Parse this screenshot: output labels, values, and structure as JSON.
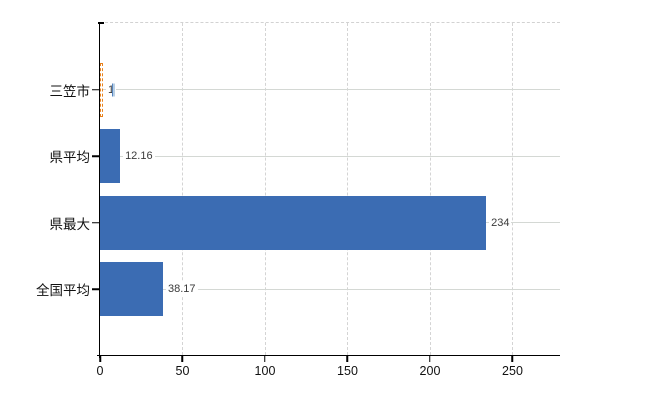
{
  "chart_data": {
    "type": "bar",
    "orientation": "horizontal",
    "title": "",
    "categories": [
      "三笠市",
      "県平均",
      "県最大",
      "全国平均"
    ],
    "values": [
      1,
      12.16,
      234,
      38.17
    ],
    "value_labels": [
      "1",
      "12.16",
      "234",
      "38.17"
    ],
    "x_ticks": [
      0,
      50,
      100,
      150,
      200,
      250
    ],
    "x_tick_labels": [
      "0",
      "50",
      "100",
      "150",
      "200",
      "250"
    ],
    "xlim": [
      0,
      278.8
    ],
    "grid": true,
    "legend": false,
    "bar_color": "#3b6cb3",
    "highlighted_index": 0,
    "highlight_outline_color": "#e8821e",
    "marker_color_left": "#5585c0",
    "marker_color_right": "#b9cfe4",
    "axis_color": "#000000",
    "v_gridline_color": "#d4d4d4",
    "h_gridline_color": "#d4d8d4",
    "category_label_color": "#111111",
    "value_label_color": "#3a3a3a",
    "background_color": "#ffffff"
  }
}
